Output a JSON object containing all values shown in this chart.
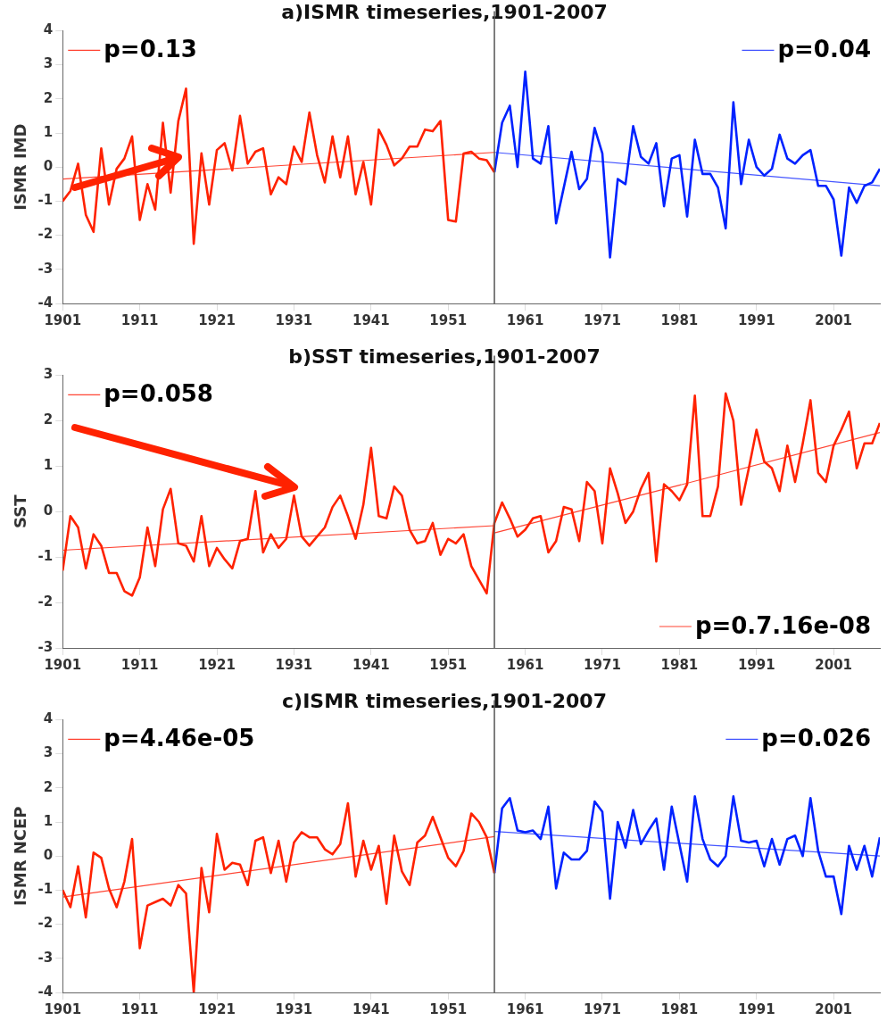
{
  "chart_data": [
    {
      "type": "line",
      "title": "a)ISMR timeseries,1901-2007",
      "ylabel": "ISMR IMD",
      "xlim": [
        1901,
        2007
      ],
      "xticks": [
        1901,
        1911,
        1921,
        1931,
        1941,
        1951,
        1961,
        1971,
        1981,
        1991,
        2001
      ],
      "ylim": [
        -4,
        4
      ],
      "yticks": [
        -4,
        -3,
        -2,
        -1,
        0,
        1,
        2,
        3,
        4
      ],
      "grid": false,
      "legend": "top",
      "marker": "none",
      "line_style": "solid",
      "ref_lines": [
        {
          "axis": "x",
          "value": 1957,
          "color": "#555555"
        }
      ],
      "series": [
        {
          "type": "line",
          "color": "#ff2200",
          "x": [
            1901,
            1902,
            1903,
            1904,
            1905,
            1906,
            1907,
            1908,
            1909,
            1910,
            1911,
            1912,
            1913,
            1914,
            1915,
            1916,
            1917,
            1918,
            1919,
            1920,
            1921,
            1922,
            1923,
            1924,
            1925,
            1926,
            1927,
            1928,
            1929,
            1930,
            1931,
            1932,
            1933,
            1934,
            1935,
            1936,
            1937,
            1938,
            1939,
            1940,
            1941,
            1942,
            1943,
            1944,
            1945,
            1946,
            1947,
            1948,
            1949,
            1950,
            1951,
            1952,
            1953,
            1954,
            1955,
            1956,
            1957
          ],
          "values": [
            -1.0,
            -0.7,
            0.1,
            -1.4,
            -1.9,
            0.55,
            -1.1,
            -0.05,
            0.25,
            0.9,
            -1.55,
            -0.5,
            -1.25,
            1.3,
            -0.75,
            1.35,
            2.3,
            -2.25,
            0.4,
            -1.1,
            0.5,
            0.7,
            -0.1,
            1.5,
            0.1,
            0.45,
            0.55,
            -0.8,
            -0.3,
            -0.5,
            0.6,
            0.15,
            1.6,
            0.35,
            -0.45,
            0.9,
            -0.3,
            0.9,
            -0.8,
            0.15,
            -1.1,
            1.1,
            0.65,
            0.05,
            0.25,
            0.6,
            0.6,
            1.1,
            1.05,
            1.35,
            -1.55,
            -1.6,
            0.4,
            0.45,
            0.25,
            0.2,
            -0.15
          ]
        },
        {
          "type": "line",
          "color": "#0022ff",
          "x": [
            1957,
            1958,
            1959,
            1960,
            1961,
            1962,
            1963,
            1964,
            1965,
            1966,
            1967,
            1968,
            1969,
            1970,
            1971,
            1972,
            1973,
            1974,
            1975,
            1976,
            1977,
            1978,
            1979,
            1980,
            1981,
            1982,
            1983,
            1984,
            1985,
            1986,
            1987,
            1988,
            1989,
            1990,
            1991,
            1992,
            1993,
            1994,
            1995,
            1996,
            1997,
            1998,
            1999,
            2000,
            2001,
            2002,
            2003,
            2004,
            2005,
            2006,
            2007
          ],
          "values": [
            -0.15,
            1.3,
            1.8,
            0,
            2.8,
            0.25,
            0.1,
            1.2,
            -1.65,
            -0.6,
            0.45,
            -0.65,
            -0.35,
            1.15,
            0.4,
            -2.65,
            -0.35,
            -0.5,
            1.2,
            0.3,
            0.1,
            0.7,
            -1.15,
            0.25,
            0.35,
            -1.45,
            0.8,
            -0.2,
            -0.2,
            -0.6,
            -1.8,
            1.9,
            -0.5,
            0.8,
            0,
            -0.25,
            -0.05,
            0.95,
            0.25,
            0.1,
            0.35,
            0.5,
            -0.55,
            -0.55,
            -0.95,
            -2.6,
            -0.6,
            -1.05,
            -0.55,
            -0.45,
            -0.05
          ]
        },
        {
          "type": "line",
          "name": "p=0.13",
          "color": "#ff4433",
          "x": [
            1901,
            1957
          ],
          "values": [
            -0.35,
            0.43
          ]
        },
        {
          "type": "line",
          "name": "p=0.04",
          "color": "#4455ff",
          "x": [
            1957,
            2007
          ],
          "values": [
            0.43,
            -0.55
          ]
        }
      ]
    },
    {
      "type": "line",
      "title": "b)SST timeseries,1901-2007",
      "ylabel": "SST",
      "xlim": [
        1901,
        2007
      ],
      "xticks": [
        1901,
        1911,
        1921,
        1931,
        1941,
        1951,
        1961,
        1971,
        1981,
        1991,
        2001
      ],
      "ylim": [
        -3,
        3
      ],
      "yticks": [
        -3,
        -2,
        -1,
        0,
        1,
        2,
        3
      ],
      "grid": false,
      "legend": "top left",
      "marker": "none",
      "line_style": "solid",
      "ref_lines": [
        {
          "axis": "x",
          "value": 1957,
          "color": "#555555"
        }
      ],
      "series": [
        {
          "type": "line",
          "color": "#ff2200",
          "x": [
            1901,
            1902,
            1903,
            1904,
            1905,
            1906,
            1907,
            1908,
            1909,
            1910,
            1911,
            1912,
            1913,
            1914,
            1915,
            1916,
            1917,
            1918,
            1919,
            1920,
            1921,
            1922,
            1923,
            1924,
            1925,
            1926,
            1927,
            1928,
            1929,
            1930,
            1931,
            1932,
            1933,
            1934,
            1935,
            1936,
            1937,
            1938,
            1939,
            1940,
            1941,
            1942,
            1943,
            1944,
            1945,
            1946,
            1947,
            1948,
            1949,
            1950,
            1951,
            1952,
            1953,
            1954,
            1955,
            1956,
            1957,
            1958,
            1959,
            1960,
            1961,
            1962,
            1963,
            1964,
            1965,
            1966,
            1967,
            1968,
            1969,
            1970,
            1971,
            1972,
            1973,
            1974,
            1975,
            1976,
            1977,
            1978,
            1979,
            1980,
            1981,
            1982,
            1983,
            1984,
            1985,
            1986,
            1987,
            1988,
            1989,
            1990,
            1991,
            1992,
            1993,
            1994,
            1995,
            1996,
            1997,
            1998,
            1999,
            2000,
            2001,
            2002,
            2003,
            2004,
            2005,
            2006,
            2007
          ],
          "values": [
            -1.3,
            -0.1,
            -0.35,
            -1.25,
            -0.5,
            -0.75,
            -1.35,
            -1.35,
            -1.75,
            -1.85,
            -1.45,
            -0.35,
            -1.2,
            0.05,
            0.5,
            -0.7,
            -0.75,
            -1.1,
            -0.1,
            -1.2,
            -0.8,
            -1.05,
            -1.25,
            -0.65,
            -0.6,
            0.45,
            -0.9,
            -0.5,
            -0.8,
            -0.6,
            0.35,
            -0.55,
            -0.75,
            -0.55,
            -0.35,
            0.1,
            0.35,
            -0.1,
            -0.6,
            0.15,
            1.4,
            -0.1,
            -0.15,
            0.55,
            0.35,
            -0.4,
            -0.7,
            -0.65,
            -0.25,
            -0.95,
            -0.6,
            -0.7,
            -0.5,
            -1.2,
            -1.5,
            -1.8,
            -0.25,
            0.2,
            -0.15,
            -0.55,
            -0.4,
            -0.15,
            -0.1,
            -0.9,
            -0.65,
            0.1,
            0.05,
            -0.65,
            0.65,
            0.45,
            -0.7,
            0.95,
            0.4,
            -0.25,
            0,
            0.5,
            0.85,
            -1.1,
            0.6,
            0.45,
            0.25,
            0.6,
            2.55,
            -0.1,
            -0.1,
            0.55,
            2.6,
            2.0,
            0.15,
            0.95,
            1.8,
            1.1,
            0.95,
            0.45,
            1.45,
            0.65,
            1.5,
            2.45,
            0.85,
            0.65,
            1.45,
            1.8,
            2.2,
            0.95,
            1.5,
            1.5,
            1.95
          ]
        },
        {
          "type": "line",
          "name": "p=0.058",
          "color": "#ff4433",
          "x": [
            1901,
            1957
          ],
          "values": [
            -0.85,
            -0.31
          ]
        },
        {
          "type": "line",
          "name": "p=0.7.16e-08",
          "color": "#ff4433",
          "x": [
            1957,
            1981,
            2007
          ],
          "values": [
            -0.47,
            0.58,
            1.74
          ]
        }
      ]
    },
    {
      "type": "line",
      "title": "c)ISMR timeseries,1901-2007",
      "ylabel": "ISMR NCEP",
      "xlim": [
        1901,
        2007
      ],
      "xticks": [
        1901,
        1911,
        1921,
        1931,
        1941,
        1951,
        1961,
        1971,
        1981,
        1991,
        2001
      ],
      "ylim": [
        -4,
        4
      ],
      "yticks": [
        -4,
        -3,
        -2,
        -1,
        0,
        1,
        2,
        3,
        4
      ],
      "grid": false,
      "legend": "top",
      "marker": "none",
      "line_style": "solid",
      "ref_lines": [
        {
          "axis": "x",
          "value": 1957,
          "color": "#555555"
        }
      ],
      "series": [
        {
          "type": "line",
          "color": "#ff2200",
          "x": [
            1901,
            1902,
            1903,
            1904,
            1905,
            1906,
            1907,
            1908,
            1909,
            1910,
            1911,
            1912,
            1913,
            1914,
            1915,
            1916,
            1917,
            1918,
            1919,
            1920,
            1921,
            1922,
            1923,
            1924,
            1925,
            1926,
            1927,
            1928,
            1929,
            1930,
            1931,
            1932,
            1933,
            1934,
            1935,
            1936,
            1937,
            1938,
            1939,
            1940,
            1941,
            1942,
            1943,
            1944,
            1945,
            1946,
            1947,
            1948,
            1949,
            1950,
            1951,
            1952,
            1953,
            1954,
            1955,
            1956,
            1957
          ],
          "values": [
            -1.0,
            -1.5,
            -0.3,
            -1.8,
            0.1,
            -0.05,
            -0.95,
            -1.5,
            -0.75,
            0.5,
            -2.7,
            -1.45,
            -1.35,
            -1.25,
            -1.45,
            -0.85,
            -1.1,
            -4.0,
            -0.35,
            -1.65,
            0.65,
            -0.4,
            -0.2,
            -0.25,
            -0.85,
            0.45,
            0.55,
            -0.5,
            0.45,
            -0.75,
            0.4,
            0.7,
            0.55,
            0.55,
            0.2,
            0.05,
            0.35,
            1.55,
            -0.6,
            0.45,
            -0.4,
            0.3,
            -1.4,
            0.6,
            -0.45,
            -0.85,
            0.4,
            0.6,
            1.15,
            0.55,
            -0.05,
            -0.3,
            0.15,
            1.25,
            1.0,
            0.55,
            -0.5
          ]
        },
        {
          "type": "line",
          "color": "#0022ff",
          "x": [
            1957,
            1958,
            1959,
            1960,
            1961,
            1962,
            1963,
            1964,
            1965,
            1966,
            1967,
            1968,
            1969,
            1970,
            1971,
            1972,
            1973,
            1974,
            1975,
            1976,
            1977,
            1978,
            1979,
            1980,
            1981,
            1982,
            1983,
            1984,
            1985,
            1986,
            1987,
            1988,
            1989,
            1990,
            1991,
            1992,
            1993,
            1994,
            1995,
            1996,
            1997,
            1998,
            1999,
            2000,
            2001,
            2002,
            2003,
            2004,
            2005,
            2006,
            2007
          ],
          "values": [
            -0.5,
            1.4,
            1.7,
            0.75,
            0.7,
            0.75,
            0.5,
            1.45,
            -0.95,
            0.1,
            -0.1,
            -0.1,
            0.15,
            1.6,
            1.3,
            -1.25,
            1.0,
            0.25,
            1.35,
            0.35,
            0.75,
            1.1,
            -0.4,
            1.45,
            0.35,
            -0.75,
            1.75,
            0.5,
            -0.1,
            -0.3,
            0,
            1.75,
            0.45,
            0.4,
            0.45,
            -0.3,
            0.5,
            -0.25,
            0.5,
            0.6,
            0,
            1.7,
            0.15,
            -0.6,
            -0.6,
            -1.7,
            0.3,
            -0.4,
            0.3,
            -0.6,
            0.55
          ]
        },
        {
          "type": "line",
          "name": "p=4.46e-05",
          "color": "#ff4433",
          "x": [
            1901,
            1957
          ],
          "values": [
            -1.2,
            0.57
          ]
        },
        {
          "type": "line",
          "name": "p=0.026",
          "color": "#4455ff",
          "x": [
            1957,
            2007
          ],
          "values": [
            0.72,
            0.0
          ]
        }
      ]
    }
  ]
}
